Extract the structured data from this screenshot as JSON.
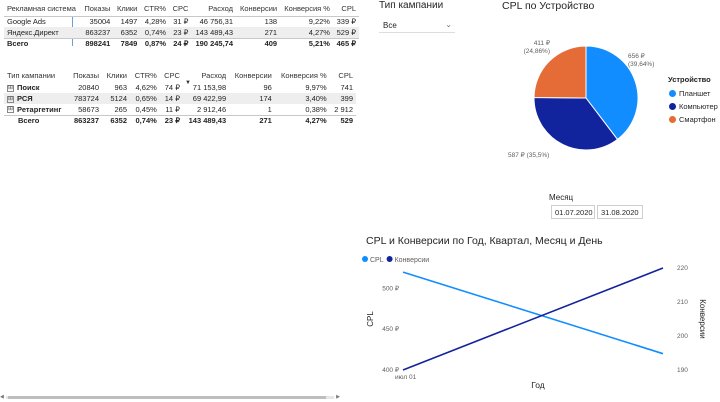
{
  "table1": {
    "headers": [
      "Рекламная система",
      "Показы",
      "Клики",
      "CTR%",
      "CPC",
      "Расход",
      "Конверсии",
      "Конверсия %",
      "CPL"
    ],
    "rows": [
      [
        "Google Ads",
        "35004",
        "1497",
        "4,28%",
        "31 ₽",
        "46 756,31",
        "138",
        "9,22%",
        "339 ₽"
      ],
      [
        "Яндекс.Директ",
        "863237",
        "6352",
        "0,74%",
        "23 ₽",
        "143 489,43",
        "271",
        "4,27%",
        "529 ₽"
      ]
    ],
    "total": [
      "Всего",
      "898241",
      "7849",
      "0,87%",
      "24 ₽",
      "190 245,74",
      "409",
      "5,21%",
      "465 ₽"
    ]
  },
  "table2": {
    "headers": [
      "Тип кампании",
      "Показы",
      "Клики",
      "CTR%",
      "CPC",
      "Расход",
      "Конверсии",
      "Конверсия %",
      "CPL"
    ],
    "expand_icon": "⊞",
    "rows": [
      [
        "Поиск",
        "20840",
        "963",
        "4,62%",
        "74 ₽",
        "71 153,98",
        "96",
        "9,97%",
        "741"
      ],
      [
        "РСЯ",
        "783724",
        "5124",
        "0,65%",
        "14 ₽",
        "69 422,99",
        "174",
        "3,40%",
        "399"
      ],
      [
        "Ретаргетинг",
        "58673",
        "265",
        "0,45%",
        "11 ₽",
        "2 912,46",
        "1",
        "0,38%",
        "2 912"
      ]
    ],
    "total": [
      "Всего",
      "863237",
      "6352",
      "0,74%",
      "23 ₽",
      "143 489,43",
      "271",
      "4,27%",
      "529"
    ]
  },
  "slicer": {
    "title": "Тип кампании",
    "value": "Все",
    "chevron": "⌄"
  },
  "pie": {
    "title": "CPL по Устройство",
    "legend_title": "Устройство",
    "slices": [
      {
        "name": "Планшет",
        "value": 656,
        "label": "656 ₽ (39,64%)",
        "color": "#118DFF"
      },
      {
        "name": "Компьютер",
        "value": 587,
        "label": "587 ₽ (35,5%)",
        "color": "#12239E"
      },
      {
        "name": "Смартфон",
        "value": 411,
        "label": "411 ₽ (24,86%)",
        "color": "#E66C37"
      }
    ]
  },
  "date_slicer": {
    "title": "Месяц",
    "from": "01.07.2020",
    "to": "31.08.2020"
  },
  "chart_data": {
    "type": "line",
    "title": "CPL и Конверсии по Год, Квартал, Месяц и День",
    "xlabel": "Год",
    "x_tick": "июл 01",
    "series": [
      {
        "name": "CPL",
        "axis": "left",
        "color": "#118DFF",
        "y_start": 520,
        "y_end": 420
      },
      {
        "name": "Конверсии",
        "axis": "right",
        "color": "#12239E",
        "y_start": 190,
        "y_end": 220
      }
    ],
    "y_left": {
      "label": "CPL",
      "ticks": [
        "500 ₽",
        "450 ₽",
        "400 ₽"
      ],
      "values": [
        500,
        450,
        400
      ],
      "range": [
        400,
        525
      ]
    },
    "y_right": {
      "label": "Конверсии",
      "ticks": [
        "220",
        "210",
        "200",
        "190"
      ],
      "values": [
        220,
        210,
        200,
        190
      ],
      "range": [
        190,
        220
      ]
    }
  }
}
